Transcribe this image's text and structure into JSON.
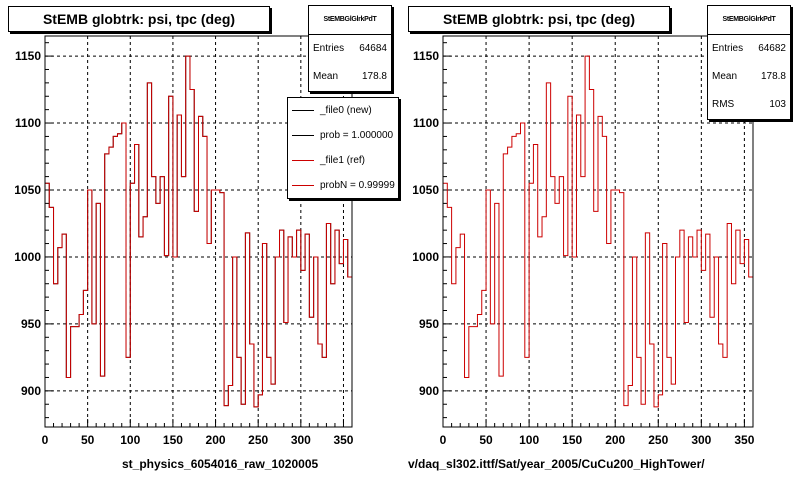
{
  "chart_data": [
    {
      "type": "step",
      "title": "StEMB globtrk: psi, tpc (deg)",
      "xlabel": "st_physics_6054016_raw_1020005",
      "ylabel": "",
      "xlim": [
        0,
        360
      ],
      "ylim": [
        873,
        1165
      ],
      "xticks": [
        0,
        50,
        100,
        150,
        200,
        250,
        300,
        350
      ],
      "yticks": [
        900,
        950,
        1000,
        1050,
        1100,
        1150
      ],
      "grid": true,
      "legend_position": "top-right",
      "stats": {
        "name": "StEMBGlGlrkPdT",
        "entries_label": "Entries",
        "entries": "64684",
        "mean_label": "Mean",
        "mean": "178.8"
      },
      "legend": [
        "_file0 (new)",
        "prob = 1.000000",
        "_file1 (ref)",
        "probN = 0.99999"
      ],
      "series": [
        {
          "name": "_file0 (new)",
          "color": "#000000",
          "values": [
            1055,
            1037,
            980,
            1007,
            1017,
            910,
            948,
            948,
            957,
            975,
            1050,
            950,
            1040,
            911,
            1077,
            1082,
            1090,
            1092,
            1100,
            925,
            1055,
            1084,
            1015,
            1030,
            1130,
            1060,
            1040,
            1060,
            1001,
            1120,
            1000,
            1106,
            1060,
            1150,
            1125,
            1034,
            1105,
            1090,
            1010,
            1050,
            1050,
            1048,
            889,
            904,
            1000,
            925,
            890,
            1018,
            935,
            888,
            897,
            1010,
            925,
            905,
            1000,
            1020,
            951,
            1015,
            1000,
            1020,
            990,
            1017,
            955,
            1000,
            935,
            925,
            1025,
            980,
            1020,
            995,
            1013,
            985
          ]
        },
        {
          "name": "_file1 (ref)",
          "color": "#cc0000",
          "values": [
            1055,
            1037,
            980,
            1007,
            1017,
            910,
            948,
            948,
            957,
            975,
            1050,
            950,
            1040,
            911,
            1077,
            1082,
            1090,
            1092,
            1100,
            925,
            1055,
            1084,
            1015,
            1030,
            1130,
            1060,
            1040,
            1060,
            1001,
            1120,
            1000,
            1106,
            1060,
            1150,
            1125,
            1034,
            1105,
            1090,
            1010,
            1050,
            1050,
            1048,
            889,
            904,
            1000,
            925,
            890,
            1018,
            935,
            888,
            897,
            1010,
            925,
            905,
            1000,
            1020,
            951,
            1015,
            1000,
            1020,
            990,
            1017,
            955,
            1000,
            935,
            925,
            1025,
            980,
            1020,
            995,
            1013,
            985
          ]
        }
      ]
    },
    {
      "type": "step",
      "title": "StEMB globtrk: psi, tpc (deg)",
      "xlabel": "v/daq_sl302.ittf/Sat/year_2005/CuCu200_HighTower/",
      "ylabel": "",
      "xlim": [
        0,
        360
      ],
      "ylim": [
        873,
        1165
      ],
      "xticks": [
        0,
        50,
        100,
        150,
        200,
        250,
        300,
        350
      ],
      "yticks": [
        900,
        950,
        1000,
        1050,
        1100,
        1150
      ],
      "grid": true,
      "stats": {
        "name": "StEMBGlGlrkPdT",
        "entries_label": "Entries",
        "entries": "64682",
        "mean_label": "Mean",
        "mean": "178.8",
        "rms_label": "RMS",
        "rms": "103"
      },
      "series": [
        {
          "name": "",
          "color": "#cc0000",
          "values": [
            1055,
            1037,
            980,
            1007,
            1017,
            910,
            948,
            948,
            957,
            975,
            1050,
            950,
            1040,
            911,
            1077,
            1082,
            1090,
            1092,
            1100,
            925,
            1055,
            1084,
            1015,
            1030,
            1130,
            1060,
            1040,
            1060,
            1001,
            1120,
            1000,
            1106,
            1060,
            1150,
            1125,
            1034,
            1105,
            1090,
            1010,
            1050,
            1050,
            1048,
            889,
            904,
            1000,
            925,
            890,
            1018,
            935,
            888,
            897,
            1010,
            925,
            905,
            1000,
            1020,
            951,
            1015,
            1000,
            1020,
            990,
            1017,
            955,
            1000,
            935,
            925,
            1025,
            980,
            1020,
            995,
            1013,
            985
          ]
        }
      ]
    }
  ]
}
